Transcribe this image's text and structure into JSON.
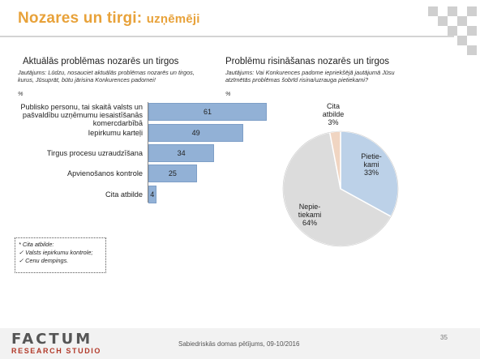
{
  "header": {
    "title_main": "Nozares un tirgi: ",
    "title_sub": "uzņēmēji"
  },
  "left": {
    "title": "Aktuālās problēmas nozarēs un tirgos",
    "question": "Jautājums: Lūdzu, nosauciet aktuālās problēmas nozarēs un tirgos, kurus, Jūsuprāt, būtu jārisina Konkurences padomei!",
    "unit": "%",
    "note_lines": [
      "* Cita atbilde:",
      "✓ Valsts iepirkumu kontrole;",
      "✓ Cenu dempings."
    ]
  },
  "right": {
    "title": "Problēmu risināšanas nozarēs un tirgos",
    "question": "Jautājums: Vai Konkurences padome iepriekšējā jautājumā Jūsu atzīmētās problēmas šobrīd risina/uzrauga pietiekami?",
    "unit": "%"
  },
  "colors": {
    "title": "#e8a23a",
    "bar": "#92b1d6",
    "pie_enough": "#bcd1e8",
    "pie_not_enough": "#dcdcdc",
    "pie_other": "#f0d5c2"
  },
  "chart_data": [
    {
      "type": "bar",
      "orientation": "horizontal",
      "categories": [
        "Publisko personu, tai skaitā valsts un pašvaldību uzņēmumu iesaistīšanās komercdarbībā",
        "Iepirkumu karteļi",
        "Tirgus procesu uzraudzīšana",
        "Apvienošanos kontrole",
        "Cita atbilde"
      ],
      "values": [
        61,
        49,
        34,
        25,
        4
      ],
      "xlim": [
        0,
        61
      ],
      "grid": false
    },
    {
      "type": "pie",
      "slices": [
        {
          "label": "Pietie-kami",
          "value": 33,
          "value_label": "33%",
          "color": "#bcd1e8"
        },
        {
          "label": "Nepie-tiekami",
          "value": 64,
          "value_label": "64%",
          "color": "#dcdcdc"
        },
        {
          "label": "Cita atbilde",
          "value": 3,
          "value_label": "3%",
          "color": "#f0d5c2"
        }
      ],
      "start_angle_deg": 0
    }
  ],
  "footer": {
    "logo_main": "FACTUM",
    "logo_sub": "RESEARCH STUDIO",
    "text": "Sabiedriskās domas pētījums, 09-10/2016",
    "page": "35"
  }
}
